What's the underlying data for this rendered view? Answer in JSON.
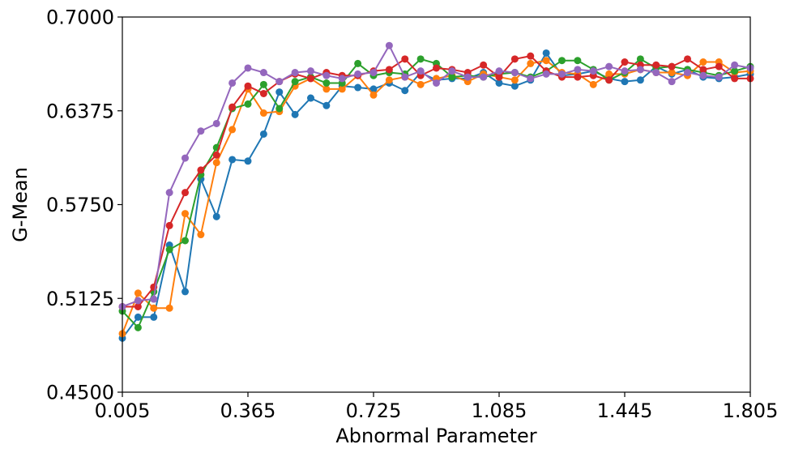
{
  "chart_data": {
    "type": "line",
    "xlabel": "Abnormal Parameter",
    "ylabel": "G-Mean",
    "xlim": [
      0.005,
      1.805
    ],
    "ylim": [
      0.45,
      0.7
    ],
    "x_ticks": [
      "0.005",
      "0.365",
      "0.725",
      "1.085",
      "1.445",
      "1.805"
    ],
    "y_ticks": [
      "0.4500",
      "0.5125",
      "0.5750",
      "0.6375",
      "0.7000"
    ],
    "grid": false,
    "legend": false,
    "x": [
      0.005,
      0.05,
      0.095,
      0.14,
      0.185,
      0.23,
      0.275,
      0.32,
      0.365,
      0.41,
      0.455,
      0.5,
      0.545,
      0.59,
      0.635,
      0.68,
      0.725,
      0.77,
      0.815,
      0.86,
      0.905,
      0.95,
      0.995,
      1.04,
      1.085,
      1.13,
      1.175,
      1.22,
      1.265,
      1.31,
      1.355,
      1.4,
      1.445,
      1.49,
      1.535,
      1.58,
      1.625,
      1.67,
      1.715,
      1.76,
      1.805
    ],
    "series": [
      {
        "color": "#1f77b4",
        "values": [
          0.486,
          0.5,
          0.5,
          0.548,
          0.517,
          0.592,
          0.567,
          0.605,
          0.604,
          0.622,
          0.65,
          0.635,
          0.646,
          0.641,
          0.654,
          0.653,
          0.652,
          0.656,
          0.651,
          0.663,
          0.658,
          0.659,
          0.659,
          0.663,
          0.656,
          0.654,
          0.658,
          0.676,
          0.661,
          0.662,
          0.664,
          0.659,
          0.657,
          0.658,
          0.667,
          0.662,
          0.665,
          0.66,
          0.659,
          0.66,
          0.662
        ]
      },
      {
        "color": "#ff7f0e",
        "values": [
          0.489,
          0.516,
          0.506,
          0.506,
          0.569,
          0.555,
          0.603,
          0.625,
          0.652,
          0.636,
          0.637,
          0.654,
          0.659,
          0.652,
          0.652,
          0.661,
          0.648,
          0.658,
          0.66,
          0.655,
          0.659,
          0.661,
          0.657,
          0.662,
          0.66,
          0.658,
          0.669,
          0.671,
          0.663,
          0.662,
          0.655,
          0.662,
          0.662,
          0.665,
          0.663,
          0.663,
          0.661,
          0.67,
          0.67,
          0.663,
          0.664
        ]
      },
      {
        "color": "#2ca02c",
        "values": [
          0.504,
          0.493,
          0.517,
          0.545,
          0.551,
          0.595,
          0.613,
          0.639,
          0.642,
          0.655,
          0.639,
          0.657,
          0.66,
          0.656,
          0.656,
          0.669,
          0.661,
          0.663,
          0.662,
          0.672,
          0.669,
          0.66,
          0.661,
          0.66,
          0.662,
          0.663,
          0.66,
          0.664,
          0.671,
          0.671,
          0.665,
          0.658,
          0.663,
          0.672,
          0.666,
          0.667,
          0.665,
          0.663,
          0.661,
          0.664,
          0.667
        ]
      },
      {
        "color": "#d62728",
        "values": [
          0.507,
          0.507,
          0.52,
          0.561,
          0.583,
          0.598,
          0.608,
          0.64,
          0.654,
          0.649,
          0.657,
          0.662,
          0.659,
          0.663,
          0.661,
          0.661,
          0.664,
          0.665,
          0.672,
          0.661,
          0.666,
          0.665,
          0.663,
          0.668,
          0.66,
          0.672,
          0.674,
          0.664,
          0.66,
          0.66,
          0.661,
          0.658,
          0.67,
          0.668,
          0.668,
          0.667,
          0.672,
          0.665,
          0.667,
          0.659,
          0.659
        ]
      },
      {
        "color": "#9467bd",
        "values": [
          0.507,
          0.511,
          0.512,
          0.583,
          0.606,
          0.624,
          0.629,
          0.656,
          0.666,
          0.663,
          0.657,
          0.663,
          0.664,
          0.661,
          0.659,
          0.662,
          0.663,
          0.681,
          0.66,
          0.664,
          0.656,
          0.664,
          0.66,
          0.66,
          0.664,
          0.663,
          0.659,
          0.662,
          0.662,
          0.665,
          0.664,
          0.667,
          0.664,
          0.665,
          0.663,
          0.657,
          0.663,
          0.661,
          0.66,
          0.668,
          0.666
        ]
      }
    ]
  }
}
